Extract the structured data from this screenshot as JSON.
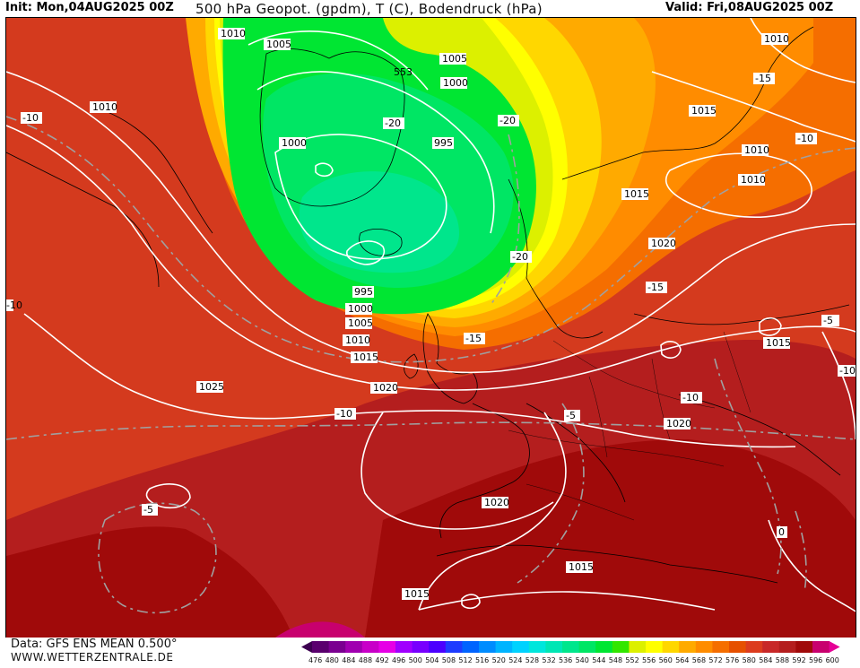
{
  "header": {
    "init": "Init: Mon,04AUG2025 00Z",
    "title": "500 hPa Geopot. (gpdm), T (C), Bodendruck (hPa)",
    "valid": "Valid: Fri,08AUG2025 00Z"
  },
  "footer": {
    "source": "Data: GFS ENS MEAN 0.500°",
    "site": "WWW.WETTERZENTRALE.DE"
  },
  "legend": {
    "ticks": [
      "476",
      "480",
      "484",
      "488",
      "492",
      "496",
      "500",
      "504",
      "508",
      "512",
      "516",
      "520",
      "524",
      "528",
      "532",
      "536",
      "540",
      "544",
      "548",
      "552",
      "556",
      "560",
      "564",
      "568",
      "572",
      "576",
      "580",
      "584",
      "588",
      "592",
      "596",
      "600"
    ],
    "colors": [
      "#3c0050",
      "#5a006e",
      "#7a0090",
      "#a000b0",
      "#c800c8",
      "#e600e6",
      "#a000ff",
      "#7800ff",
      "#4b00ff",
      "#1e3cff",
      "#0064ff",
      "#008cff",
      "#00b4ff",
      "#00d2ff",
      "#00e6dc",
      "#00e6b4",
      "#00e68c",
      "#00e664",
      "#00e632",
      "#32e600",
      "#dcf000",
      "#ffff00",
      "#ffd700",
      "#ffaa00",
      "#ff8c00",
      "#f56e00",
      "#e65000",
      "#dc3c1e",
      "#c82828",
      "#b41e1e",
      "#a00a0a",
      "#c8006e",
      "#e60096"
    ]
  },
  "map": {
    "isobar_labels": [
      "1010",
      "1005",
      "1005",
      "1000",
      "995",
      "1000",
      "995",
      "1000",
      "1005",
      "1010",
      "1015",
      "1020",
      "1025",
      "1010",
      "1015",
      "1010",
      "1010",
      "1015",
      "1020",
      "1015",
      "1020",
      "1020",
      "1015",
      "1015",
      "1010",
      "553"
    ],
    "temp_labels": [
      "-10",
      "-20",
      "-20",
      "-10",
      "-15",
      "-20",
      "-15",
      "-10",
      "-10",
      "-15",
      "-5",
      "-10",
      "-5",
      "0",
      "-5",
      "-10"
    ],
    "colors": {
      "green_low": "#00e632",
      "green_core": "#00e68c",
      "yellow": "#ffff00",
      "orange": "#ff8c00",
      "red_orange": "#e65000",
      "red": "#c82828",
      "dark_red": "#a00a0a",
      "magenta": "#c8006e"
    }
  }
}
